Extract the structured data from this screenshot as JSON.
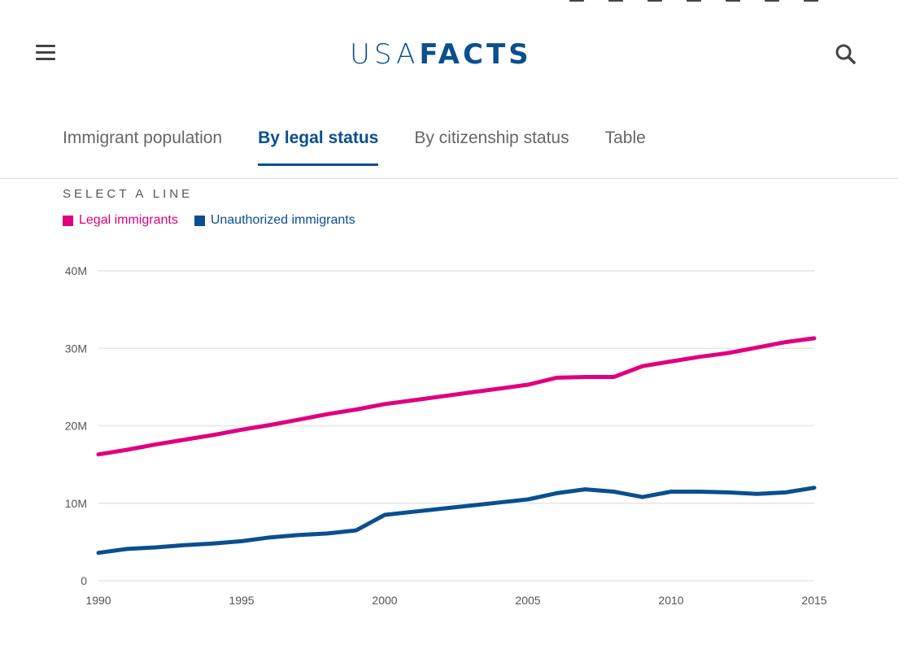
{
  "header": {
    "logo_light": "USA",
    "logo_bold": "FACTS",
    "menu_icon": "hamburger-menu-icon",
    "search_icon": "search-icon",
    "social_icons": [
      "facebook-icon",
      "twitter-icon",
      "linkedin-icon",
      "email-icon",
      "reddit-icon",
      "pinterest-icon",
      "share-icon"
    ]
  },
  "tabs": [
    {
      "label": "Immigrant population",
      "active": false
    },
    {
      "label": "By legal status",
      "active": true
    },
    {
      "label": "By citizenship status",
      "active": false
    },
    {
      "label": "Table",
      "active": false
    }
  ],
  "select_label": "SELECT A LINE",
  "colors": {
    "brand": "#0a4f8f",
    "legal": "#e0007f",
    "unauthorized": "#0a4f8f",
    "grid": "#e6e6e6"
  },
  "chart_data": {
    "type": "line",
    "title": "",
    "xlabel": "",
    "ylabel": "",
    "x": [
      1990,
      1991,
      1992,
      1993,
      1994,
      1995,
      1996,
      1997,
      1998,
      1999,
      2000,
      2001,
      2002,
      2003,
      2004,
      2005,
      2006,
      2007,
      2008,
      2009,
      2010,
      2011,
      2012,
      2013,
      2014,
      2015
    ],
    "series": [
      {
        "name": "Legal immigrants",
        "color": "#e0007f",
        "values": [
          16.3,
          16.9,
          17.6,
          18.2,
          18.8,
          19.5,
          20.1,
          20.8,
          21.5,
          22.1,
          22.8,
          23.3,
          23.8,
          24.3,
          24.8,
          25.3,
          26.2,
          26.3,
          26.3,
          27.7,
          28.3,
          28.9,
          29.4,
          30.1,
          30.8,
          31.3
        ]
      },
      {
        "name": "Unauthorized immigrants",
        "color": "#0a4f8f",
        "values": [
          3.6,
          4.1,
          4.3,
          4.6,
          4.8,
          5.1,
          5.6,
          5.9,
          6.1,
          6.5,
          8.5,
          8.9,
          9.3,
          9.7,
          10.1,
          10.5,
          11.3,
          11.8,
          11.5,
          10.8,
          11.5,
          11.5,
          11.4,
          11.2,
          11.4,
          12.0
        ]
      }
    ],
    "yticks": [
      {
        "v": 0,
        "label": "0"
      },
      {
        "v": 10,
        "label": "10M"
      },
      {
        "v": 20,
        "label": "20M"
      },
      {
        "v": 30,
        "label": "30M"
      },
      {
        "v": 40,
        "label": "40M"
      }
    ],
    "xticks": [
      1990,
      1995,
      2000,
      2005,
      2010,
      2015
    ],
    "ylim": [
      0,
      40
    ],
    "xlim": [
      1990,
      2015
    ],
    "units": "millions",
    "grid": true,
    "legend_position": "top-left"
  }
}
